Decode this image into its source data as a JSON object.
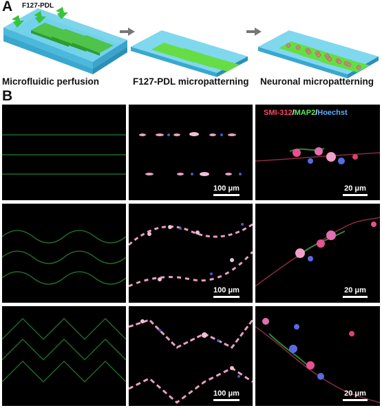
{
  "panel_a": {
    "letter": "A",
    "device_label": "F127-PDL",
    "captions": [
      "Microfluidic perfusion",
      "F127-PDL micropatterning",
      "Neuronal micropatterning"
    ]
  },
  "panel_b": {
    "letter": "B",
    "legend": {
      "red": "SMI-312",
      "sep1": "/",
      "green": "MAP2",
      "sep2": "/",
      "blue": "Hoechst"
    },
    "rows": [
      {
        "pattern": "straight",
        "scale_mid": "100 μm",
        "scale_right": "20 μm"
      },
      {
        "pattern": "wave",
        "scale_mid": "100 μm",
        "scale_right": "20 μm"
      },
      {
        "pattern": "zigzag",
        "scale_mid": "100 μm",
        "scale_right": "20 μm"
      }
    ]
  },
  "colors": {
    "device_blue": "#5fc9e6",
    "stripe_green": "#6ee24b",
    "pattern_line": "#1f6a25",
    "label_red": "#ff4466",
    "label_green": "#5ee85e",
    "label_blue": "#5aaeff"
  }
}
